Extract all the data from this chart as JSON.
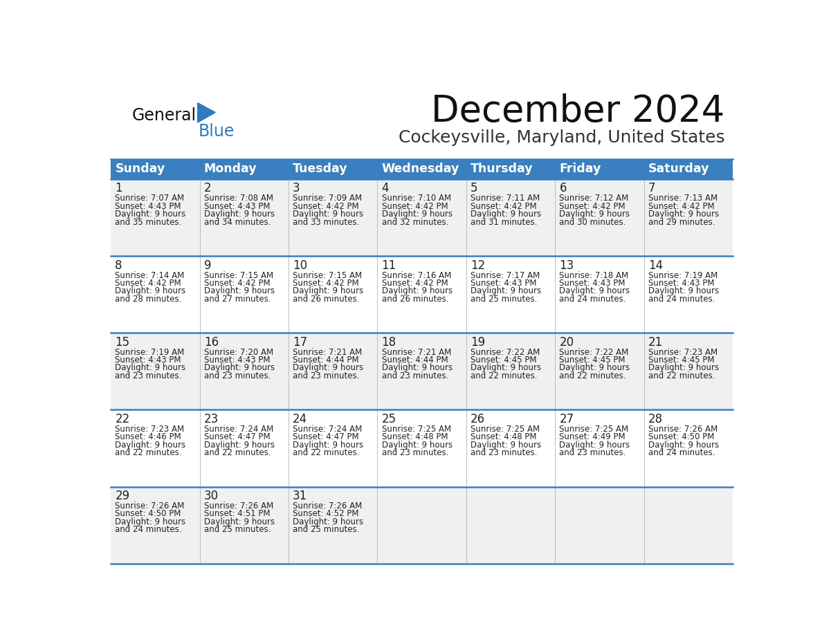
{
  "title": "December 2024",
  "subtitle": "Cockeysville, Maryland, United States",
  "days_of_week": [
    "Sunday",
    "Monday",
    "Tuesday",
    "Wednesday",
    "Thursday",
    "Friday",
    "Saturday"
  ],
  "header_bg": "#3a7fbf",
  "header_text_color": "#ffffff",
  "row_bg_odd": "#f0f0f0",
  "row_bg_even": "#ffffff",
  "cell_border_color": "#3a7fbf",
  "day_number_color": "#222222",
  "cell_text_color": "#222222",
  "title_color": "#111111",
  "subtitle_color": "#333333",
  "logo_general_color": "#111111",
  "logo_blue_color": "#2e7bbf",
  "calendar_data": [
    [
      {
        "day": 1,
        "sunrise": "7:07 AM",
        "sunset": "4:43 PM",
        "daylight_extra": "35 minutes."
      },
      {
        "day": 2,
        "sunrise": "7:08 AM",
        "sunset": "4:43 PM",
        "daylight_extra": "34 minutes."
      },
      {
        "day": 3,
        "sunrise": "7:09 AM",
        "sunset": "4:42 PM",
        "daylight_extra": "33 minutes."
      },
      {
        "day": 4,
        "sunrise": "7:10 AM",
        "sunset": "4:42 PM",
        "daylight_extra": "32 minutes."
      },
      {
        "day": 5,
        "sunrise": "7:11 AM",
        "sunset": "4:42 PM",
        "daylight_extra": "31 minutes."
      },
      {
        "day": 6,
        "sunrise": "7:12 AM",
        "sunset": "4:42 PM",
        "daylight_extra": "30 minutes."
      },
      {
        "day": 7,
        "sunrise": "7:13 AM",
        "sunset": "4:42 PM",
        "daylight_extra": "29 minutes."
      }
    ],
    [
      {
        "day": 8,
        "sunrise": "7:14 AM",
        "sunset": "4:42 PM",
        "daylight_extra": "28 minutes."
      },
      {
        "day": 9,
        "sunrise": "7:15 AM",
        "sunset": "4:42 PM",
        "daylight_extra": "27 minutes."
      },
      {
        "day": 10,
        "sunrise": "7:15 AM",
        "sunset": "4:42 PM",
        "daylight_extra": "26 minutes."
      },
      {
        "day": 11,
        "sunrise": "7:16 AM",
        "sunset": "4:42 PM",
        "daylight_extra": "26 minutes."
      },
      {
        "day": 12,
        "sunrise": "7:17 AM",
        "sunset": "4:43 PM",
        "daylight_extra": "25 minutes."
      },
      {
        "day": 13,
        "sunrise": "7:18 AM",
        "sunset": "4:43 PM",
        "daylight_extra": "24 minutes."
      },
      {
        "day": 14,
        "sunrise": "7:19 AM",
        "sunset": "4:43 PM",
        "daylight_extra": "24 minutes."
      }
    ],
    [
      {
        "day": 15,
        "sunrise": "7:19 AM",
        "sunset": "4:43 PM",
        "daylight_extra": "23 minutes."
      },
      {
        "day": 16,
        "sunrise": "7:20 AM",
        "sunset": "4:43 PM",
        "daylight_extra": "23 minutes."
      },
      {
        "day": 17,
        "sunrise": "7:21 AM",
        "sunset": "4:44 PM",
        "daylight_extra": "23 minutes."
      },
      {
        "day": 18,
        "sunrise": "7:21 AM",
        "sunset": "4:44 PM",
        "daylight_extra": "23 minutes."
      },
      {
        "day": 19,
        "sunrise": "7:22 AM",
        "sunset": "4:45 PM",
        "daylight_extra": "22 minutes."
      },
      {
        "day": 20,
        "sunrise": "7:22 AM",
        "sunset": "4:45 PM",
        "daylight_extra": "22 minutes."
      },
      {
        "day": 21,
        "sunrise": "7:23 AM",
        "sunset": "4:45 PM",
        "daylight_extra": "22 minutes."
      }
    ],
    [
      {
        "day": 22,
        "sunrise": "7:23 AM",
        "sunset": "4:46 PM",
        "daylight_extra": "22 minutes."
      },
      {
        "day": 23,
        "sunrise": "7:24 AM",
        "sunset": "4:47 PM",
        "daylight_extra": "22 minutes."
      },
      {
        "day": 24,
        "sunrise": "7:24 AM",
        "sunset": "4:47 PM",
        "daylight_extra": "22 minutes."
      },
      {
        "day": 25,
        "sunrise": "7:25 AM",
        "sunset": "4:48 PM",
        "daylight_extra": "23 minutes."
      },
      {
        "day": 26,
        "sunrise": "7:25 AM",
        "sunset": "4:48 PM",
        "daylight_extra": "23 minutes."
      },
      {
        "day": 27,
        "sunrise": "7:25 AM",
        "sunset": "4:49 PM",
        "daylight_extra": "23 minutes."
      },
      {
        "day": 28,
        "sunrise": "7:26 AM",
        "sunset": "4:50 PM",
        "daylight_extra": "24 minutes."
      }
    ],
    [
      {
        "day": 29,
        "sunrise": "7:26 AM",
        "sunset": "4:50 PM",
        "daylight_extra": "24 minutes."
      },
      {
        "day": 30,
        "sunrise": "7:26 AM",
        "sunset": "4:51 PM",
        "daylight_extra": "25 minutes."
      },
      {
        "day": 31,
        "sunrise": "7:26 AM",
        "sunset": "4:52 PM",
        "daylight_extra": "25 minutes."
      },
      null,
      null,
      null,
      null
    ]
  ]
}
